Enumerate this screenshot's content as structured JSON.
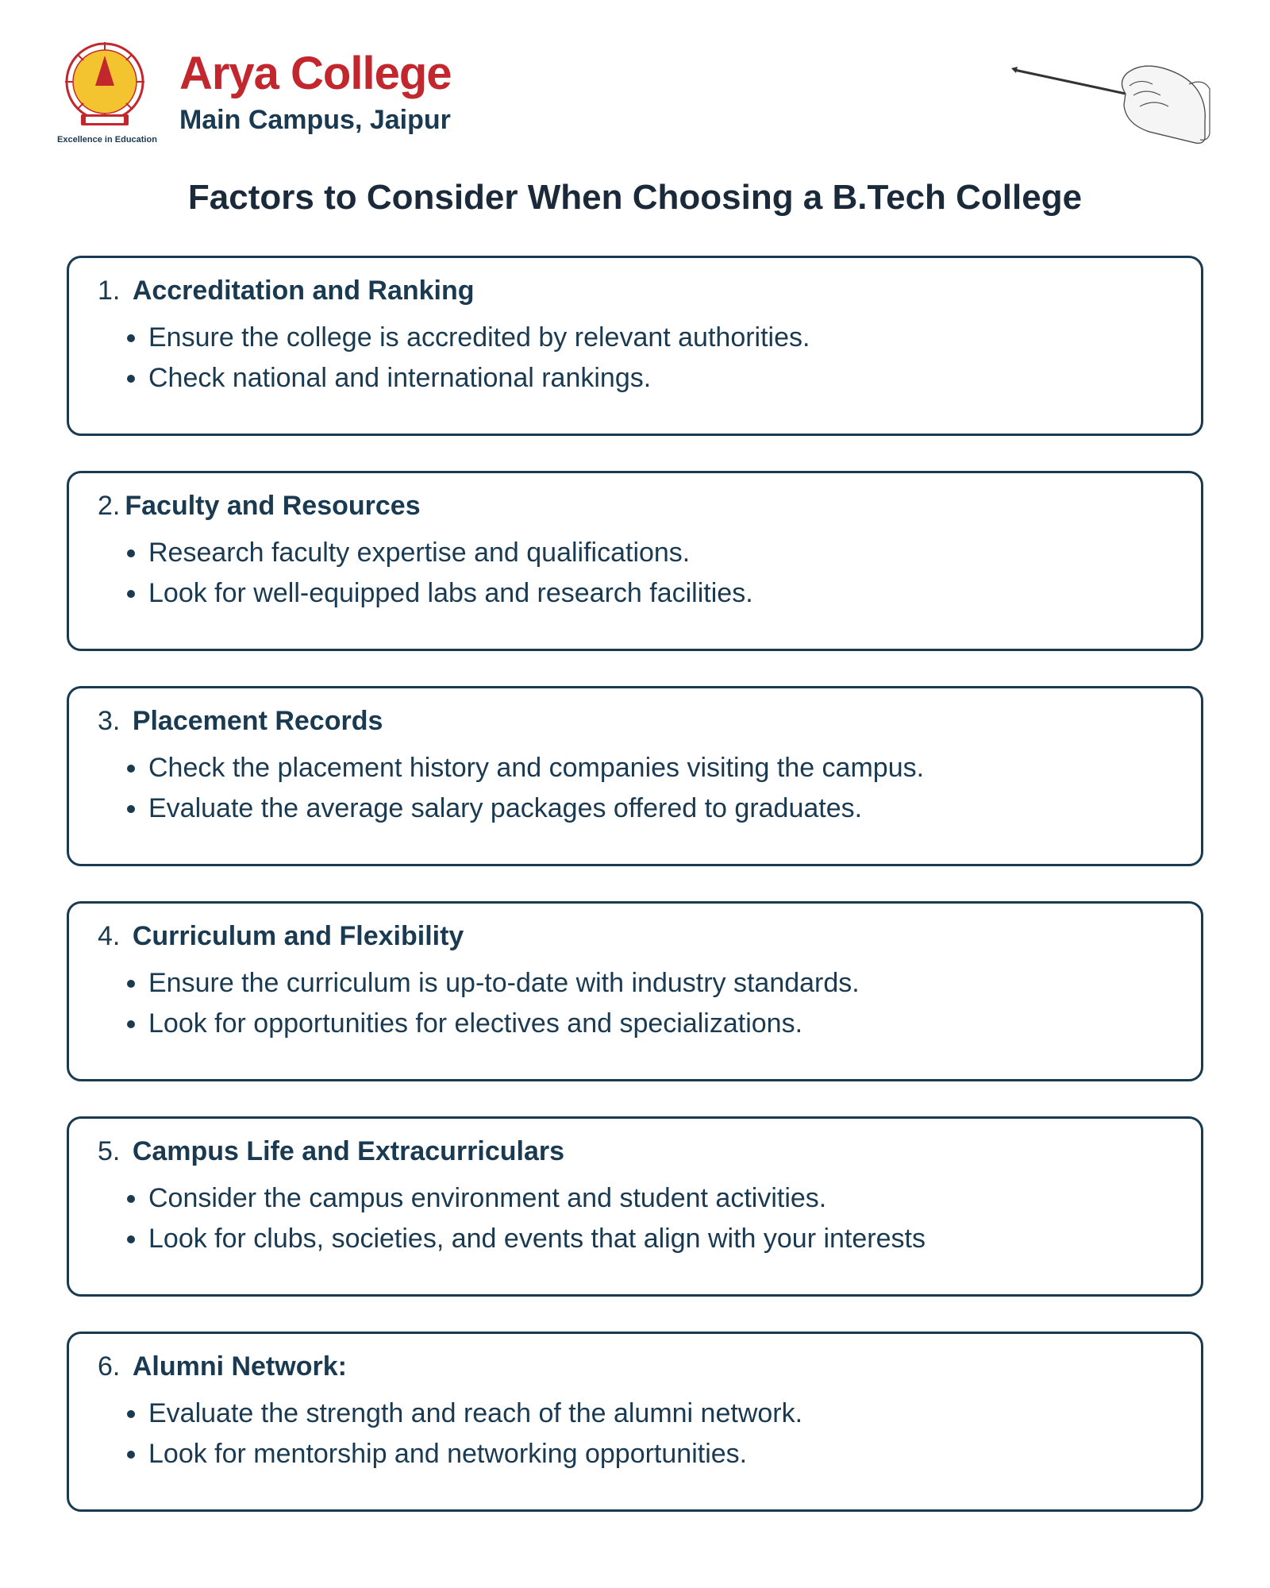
{
  "colors": {
    "brand_red": "#c2272d",
    "text_dark": "#1a3a52",
    "title_dark": "#1a2a3a",
    "border": "#1a3a52",
    "background": "#ffffff",
    "logo_yellow": "#f4c430",
    "logo_red": "#c2272d"
  },
  "header": {
    "college_name": "Arya College",
    "campus": "Main Campus, Jaipur",
    "tagline": "Excellence in Education"
  },
  "page_title": "Factors to Consider When Choosing a B.Tech College",
  "cards": [
    {
      "num": "1.",
      "title": "Accreditation and Ranking",
      "title_sep": " ",
      "bullets": [
        "Ensure the college is accredited by relevant authorities.",
        "Check national and international rankings."
      ]
    },
    {
      "num": "2.",
      "title": "Faculty and Resources",
      "title_sep": "",
      "bullets": [
        "Research faculty expertise and qualifications.",
        "Look for well-equipped labs and research facilities."
      ]
    },
    {
      "num": "3.",
      "title": "Placement Records",
      "title_sep": " ",
      "bullets": [
        "Check the placement history and companies visiting the campus.",
        "Evaluate the average salary packages offered to graduates."
      ]
    },
    {
      "num": "4.",
      "title": "Curriculum and Flexibility",
      "title_sep": " ",
      "bullets": [
        "Ensure the curriculum is up-to-date with industry standards.",
        "Look for opportunities for electives and specializations."
      ]
    },
    {
      "num": "5.",
      "title": "Campus Life and Extracurriculars",
      "title_sep": " ",
      "bullets": [
        "Consider the campus environment and student activities.",
        "Look for clubs, societies, and events that align with your interests"
      ]
    },
    {
      "num": "6.",
      "title": "Alumni Network:",
      "title_sep": " ",
      "bullets": [
        "Evaluate the strength and reach of the alumni network.",
        "Look for mentorship and networking opportunities."
      ]
    }
  ]
}
